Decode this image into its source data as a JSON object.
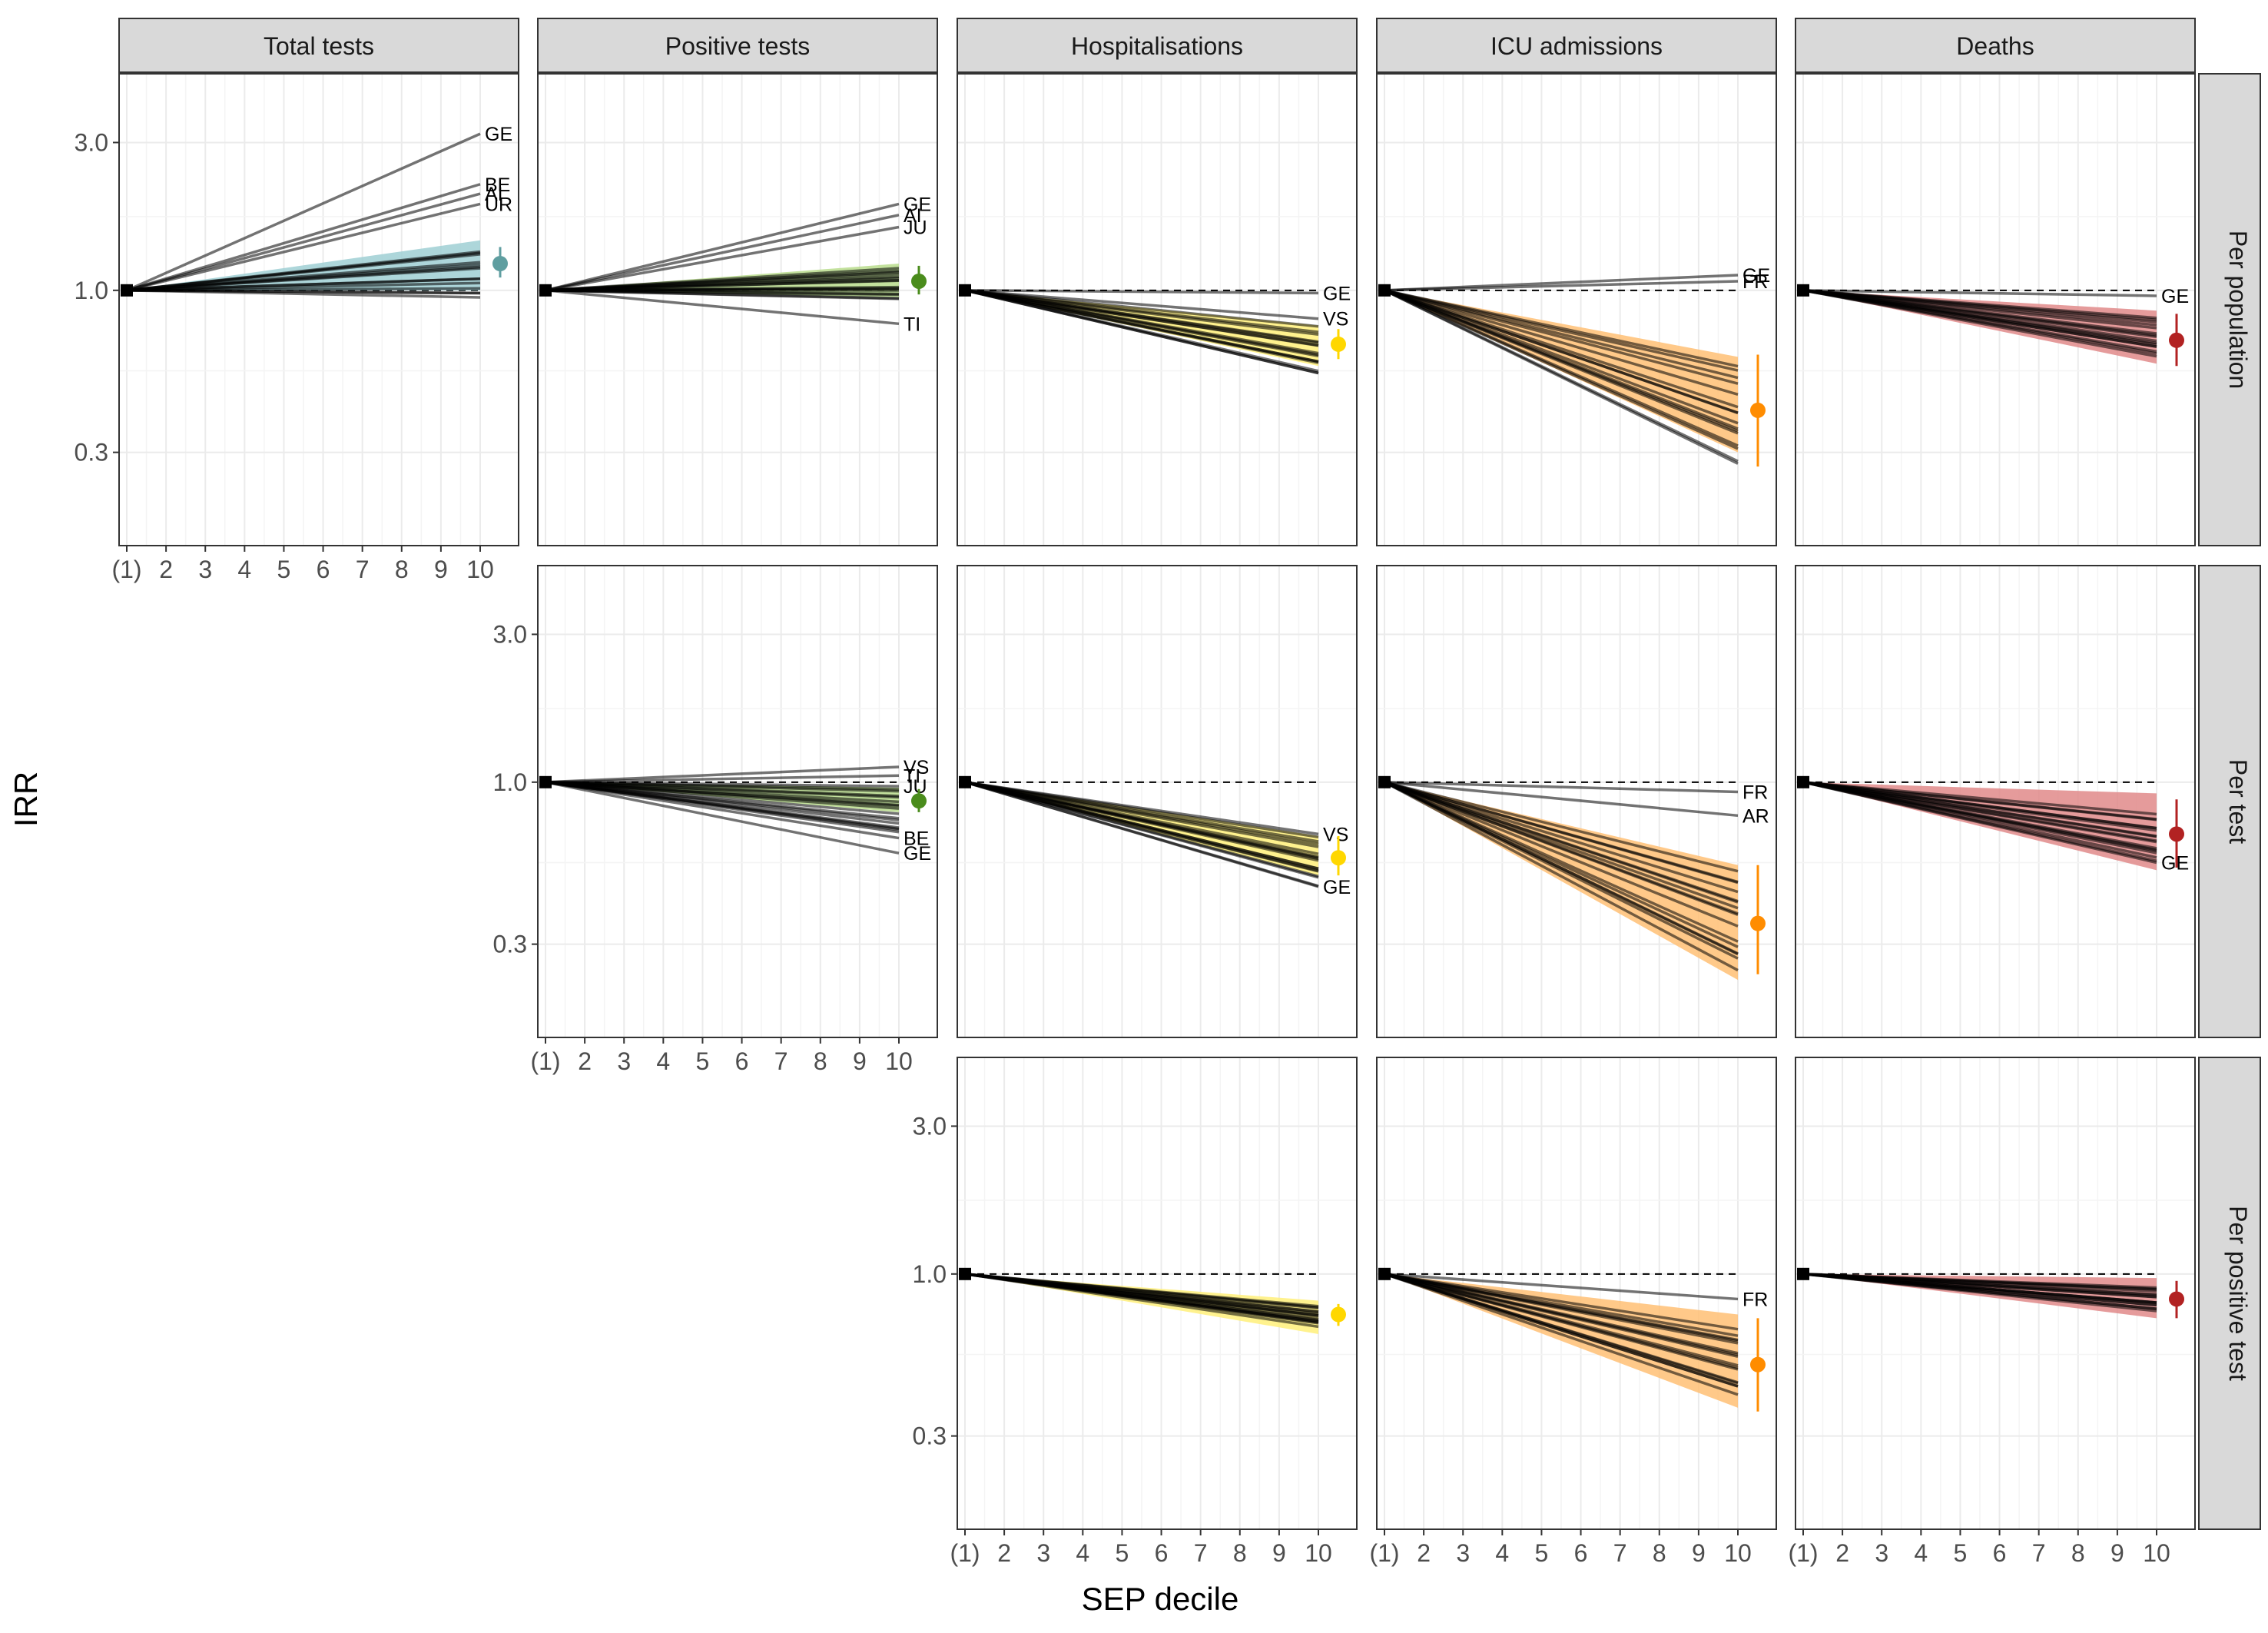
{
  "figure": {
    "ylabel": "IRR",
    "xlabel": "SEP decile",
    "column_strips": [
      "Total tests",
      "Positive tests",
      "Hospitalisations",
      "ICU admissions",
      "Deaths"
    ],
    "row_strips": [
      "Per population",
      "Per test",
      "Per positive test"
    ],
    "y_ticks": [
      "3.0",
      "1.0",
      "0.3"
    ],
    "x_ticks": [
      "(1)",
      "2",
      "3",
      "4",
      "5",
      "6",
      "7",
      "8",
      "9",
      "10"
    ]
  },
  "colors": {
    "Total tests": "#5f9ea0",
    "Positive tests": "#4a8c1c",
    "Hospitalisations": "#ffd700",
    "ICU admissions": "#ff8c00",
    "Deaths": "#b22222",
    "band_total": "#9fcfd4",
    "band_positive": "#b8dc8c",
    "band_hosp": "#fff07a",
    "band_icu": "#ffbf74",
    "band_deaths": "#e08a8a",
    "line": "#000000",
    "strip_fill": "#d9d9d9",
    "grid": "#ebebeb"
  },
  "chart_data": {
    "type": "line",
    "x_axis": "SEP decile (1 = reference)",
    "y_scale": "log",
    "ylim": [
      0.15,
      5.0
    ],
    "panels": [
      {
        "row": "Per population",
        "column": "Total tests",
        "summary": {
          "irr": 1.22,
          "lower": 1.1,
          "upper": 1.38
        },
        "band": [
          1.0,
          1.45
        ],
        "n_lines": 14,
        "line_range": [
          0.92,
          1.4
        ],
        "labeled": [
          {
            "label": "GE",
            "value": 3.2
          },
          {
            "label": "BE",
            "value": 2.2
          },
          {
            "label": "AI",
            "value": 2.05
          },
          {
            "label": "UR",
            "value": 1.9
          }
        ]
      },
      {
        "row": "Per population",
        "column": "Positive tests",
        "summary": {
          "irr": 1.07,
          "lower": 0.97,
          "upper": 1.2
        },
        "band": [
          0.95,
          1.22
        ],
        "n_lines": 16,
        "line_range": [
          0.92,
          1.2
        ],
        "labeled": [
          {
            "label": "GE",
            "value": 1.9
          },
          {
            "label": "AI",
            "value": 1.75
          },
          {
            "label": "JU",
            "value": 1.6
          },
          {
            "label": "TI",
            "value": 0.78
          }
        ]
      },
      {
        "row": "Per population",
        "column": "Hospitalisations",
        "summary": {
          "irr": 0.67,
          "lower": 0.6,
          "upper": 0.75
        },
        "band": [
          0.57,
          0.77
        ],
        "n_lines": 16,
        "line_range": [
          0.52,
          0.77
        ],
        "labeled": [
          {
            "label": "GE",
            "value": 0.98
          },
          {
            "label": "VS",
            "value": 0.81
          }
        ]
      },
      {
        "row": "Per population",
        "column": "ICU admissions",
        "summary": {
          "irr": 0.41,
          "lower": 0.27,
          "upper": 0.62
        },
        "band": [
          0.3,
          0.61
        ],
        "n_lines": 16,
        "line_range": [
          0.26,
          0.6
        ],
        "labeled": [
          {
            "label": "GE",
            "value": 1.12
          },
          {
            "label": "FR",
            "value": 1.07
          }
        ]
      },
      {
        "row": "Per population",
        "column": "Deaths",
        "summary": {
          "irr": 0.69,
          "lower": 0.57,
          "upper": 0.84
        },
        "band": [
          0.58,
          0.86
        ],
        "n_lines": 16,
        "line_range": [
          0.6,
          0.82
        ],
        "labeled": [
          {
            "label": "GE",
            "value": 0.96
          }
        ]
      },
      {
        "row": "Per test",
        "column": "Positive tests",
        "summary": {
          "irr": 0.87,
          "lower": 0.8,
          "upper": 0.95
        },
        "band": [
          0.8,
          0.96
        ],
        "n_lines": 16,
        "line_range": [
          0.66,
          0.98
        ],
        "labeled": [
          {
            "label": "VS",
            "value": 1.12
          },
          {
            "label": "TI",
            "value": 1.05
          },
          {
            "label": "JU",
            "value": 0.97
          },
          {
            "label": "BE",
            "value": 0.66
          },
          {
            "label": "GE",
            "value": 0.59
          }
        ]
      },
      {
        "row": "Per test",
        "column": "Hospitalisations",
        "summary": {
          "irr": 0.57,
          "lower": 0.5,
          "upper": 0.67
        },
        "band": [
          0.5,
          0.67
        ],
        "n_lines": 16,
        "line_range": [
          0.46,
          0.67
        ],
        "labeled": [
          {
            "label": "VS",
            "value": 0.68
          },
          {
            "label": "GE",
            "value": 0.46
          }
        ]
      },
      {
        "row": "Per test",
        "column": "ICU admissions",
        "summary": {
          "irr": 0.35,
          "lower": 0.24,
          "upper": 0.54
        },
        "band": [
          0.23,
          0.54
        ],
        "n_lines": 16,
        "line_range": [
          0.24,
          0.56
        ],
        "labeled": [
          {
            "label": "FR",
            "value": 0.93
          },
          {
            "label": "AR",
            "value": 0.78
          }
        ]
      },
      {
        "row": "Per test",
        "column": "Deaths",
        "summary": {
          "irr": 0.68,
          "lower": 0.53,
          "upper": 0.88
        },
        "band": [
          0.52,
          0.92
        ],
        "n_lines": 16,
        "line_range": [
          0.55,
          0.8
        ],
        "labeled": [
          {
            "label": "GE",
            "value": 0.55
          }
        ]
      },
      {
        "row": "Per positive test",
        "column": "Hospitalisations",
        "summary": {
          "irr": 0.74,
          "lower": 0.68,
          "upper": 0.8
        },
        "band": [
          0.64,
          0.82
        ],
        "n_lines": 16,
        "line_range": [
          0.67,
          0.8
        ],
        "labeled": []
      },
      {
        "row": "Per positive test",
        "column": "ICU admissions",
        "summary": {
          "irr": 0.51,
          "lower": 0.36,
          "upper": 0.72
        },
        "band": [
          0.37,
          0.74
        ],
        "n_lines": 16,
        "line_range": [
          0.39,
          0.68
        ],
        "labeled": [
          {
            "label": "FR",
            "value": 0.83
          }
        ]
      },
      {
        "row": "Per positive test",
        "column": "Deaths",
        "summary": {
          "irr": 0.83,
          "lower": 0.72,
          "upper": 0.95
        },
        "band": [
          0.72,
          0.97
        ],
        "n_lines": 16,
        "line_range": [
          0.74,
          0.92
        ],
        "labeled": []
      }
    ]
  }
}
